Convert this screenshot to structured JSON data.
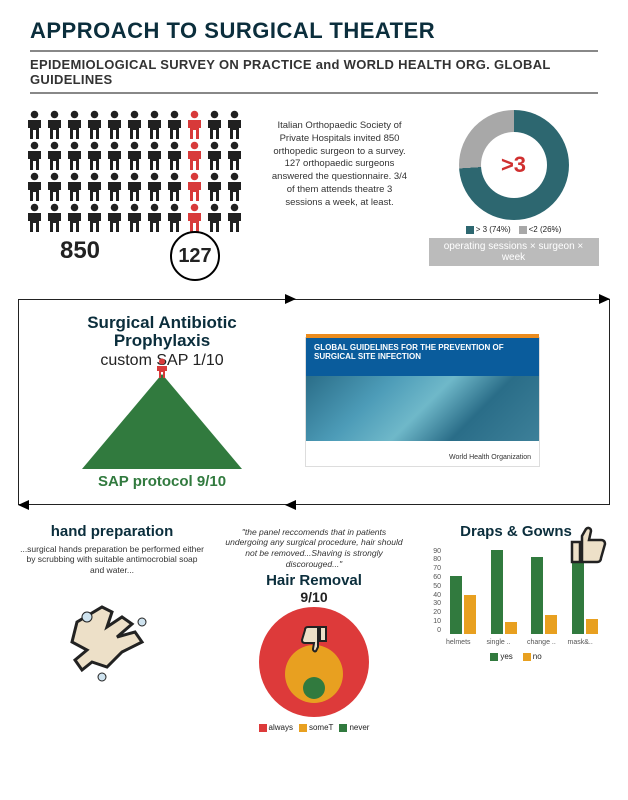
{
  "header": {
    "title": "APPROACH TO SURGICAL THEATER",
    "subtitle": "EPIDEMIOLOGICAL SURVEY ON PRACTICE and WORLD HEALTH ORG. GLOBAL GUIDELINES"
  },
  "survey": {
    "total": "850",
    "responded": "127",
    "description": "Italian Orthopaedic Society of Private Hospitals invited 850 orthopedic surgeon to a survey. 127 orthopaedic surgeons answered the questionnaire. 3/4 of them attends theatre 3 sessions a week, at least.",
    "people_rows": 4,
    "people_cols": 11,
    "red_cols": [
      8
    ],
    "colors": {
      "dark": "#202020",
      "red": "#d83a3a"
    }
  },
  "donut": {
    "center_label": ">3",
    "caption": "operating sessions × surgeon × week",
    "slices": [
      {
        "label": "> 3 (74%)",
        "value": 74,
        "color": "#2d6770"
      },
      {
        "label": "<2 (26%)",
        "value": 26,
        "color": "#a8a8a8"
      }
    ]
  },
  "sap": {
    "title": "Surgical Antibiotic Prophylaxis",
    "custom": "custom SAP 1/10",
    "protocol": "SAP protocol 9/10",
    "triangle_color": "#317a3e"
  },
  "who_cover": {
    "heading": "GLOBAL GUIDELINES FOR THE PREVENTION OF SURGICAL SITE INFECTION",
    "footer": "World Health Organization"
  },
  "hands": {
    "title": "hand preparation",
    "desc": "...surgical hands preparation be performed either by scrubbing with suitable antimocrobial soap and water..."
  },
  "hair": {
    "quote": "\"the panel reccomends that in patients undergoing any surgical procedure, hair should not be removed...Shaving is strongly discorouged...\"",
    "title": "Hair Removal",
    "label": "9/10",
    "legend": [
      {
        "label": "always",
        "color": "#dd3a3a"
      },
      {
        "label": "someT",
        "color": "#e8a020"
      },
      {
        "label": "never",
        "color": "#317a3e"
      }
    ]
  },
  "drapes": {
    "title": "Draps & Gowns",
    "ylim": [
      0,
      90
    ],
    "ystep": 10,
    "categories": [
      "helmets",
      "single ..",
      "change ..",
      "mask&.."
    ],
    "series": [
      {
        "name": "yes",
        "color": "#317a3e",
        "values": [
          60,
          88,
          80,
          85
        ]
      },
      {
        "name": "no",
        "color": "#e8a020",
        "values": [
          40,
          12,
          20,
          15
        ]
      }
    ]
  }
}
